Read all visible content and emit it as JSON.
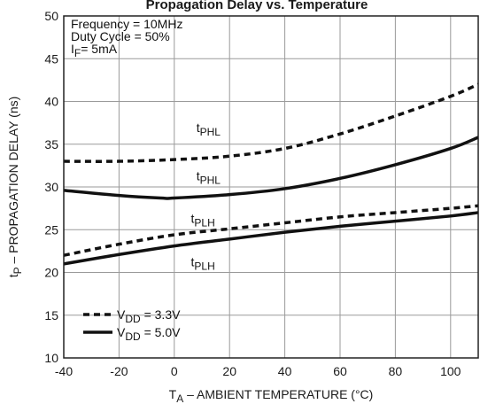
{
  "chart_data": {
    "type": "line",
    "title": "Propagation Delay vs. Temperature",
    "xlabel": {
      "pre": "T",
      "sub": "A",
      "post": " – AMBIENT TEMPERATURE (°C)"
    },
    "ylabel": {
      "pre": "t",
      "sub": "P",
      "post": " – PROPAGATION DELAY (ns)"
    },
    "xlim": [
      -40,
      110
    ],
    "ylim": [
      10,
      50
    ],
    "x_ticks": [
      -40,
      -20,
      0,
      20,
      40,
      60,
      80,
      100
    ],
    "y_ticks": [
      10,
      15,
      20,
      25,
      30,
      35,
      40,
      45,
      50
    ],
    "grid": true,
    "conditions": [
      {
        "text": "Frequency = 10MHz"
      },
      {
        "text": "Duty Cycle = 50%"
      },
      {
        "pre": "I",
        "sub": "F",
        "post": "= 5mA"
      }
    ],
    "legend": {
      "placement": "bottom-left",
      "entries": [
        {
          "style": "dashed",
          "pre": "V",
          "sub": "DD",
          "post": " = 3.3V"
        },
        {
          "style": "solid",
          "pre": "V",
          "sub": "DD",
          "post": " = 5.0V"
        }
      ]
    },
    "series": [
      {
        "curve": "tPHL",
        "vdd": "3.3V",
        "style": "dashed",
        "x": [
          -40,
          -20,
          0,
          20,
          40,
          60,
          80,
          100,
          110
        ],
        "y": [
          33.0,
          33.0,
          33.2,
          33.6,
          34.5,
          36.2,
          38.3,
          40.6,
          42.0
        ]
      },
      {
        "curve": "tPHL",
        "vdd": "5.0V",
        "style": "solid",
        "x": [
          -40,
          -20,
          -5,
          0,
          20,
          40,
          60,
          80,
          100,
          110
        ],
        "y": [
          29.6,
          29.0,
          28.7,
          28.7,
          29.1,
          29.8,
          31.0,
          32.6,
          34.5,
          35.8
        ]
      },
      {
        "curve": "tPLH",
        "vdd": "3.3V",
        "style": "dashed",
        "x": [
          -40,
          -20,
          0,
          20,
          40,
          60,
          80,
          100,
          110
        ],
        "y": [
          22.0,
          23.3,
          24.4,
          25.1,
          25.8,
          26.5,
          27.0,
          27.5,
          27.8
        ]
      },
      {
        "curve": "tPLH",
        "vdd": "5.0V",
        "style": "solid",
        "x": [
          -40,
          -20,
          0,
          20,
          40,
          60,
          80,
          100,
          110
        ],
        "y": [
          21.0,
          22.1,
          23.1,
          23.9,
          24.7,
          25.4,
          26.0,
          26.6,
          27.0
        ]
      }
    ],
    "curve_labels": [
      {
        "pre": "t",
        "sub": "PHL",
        "at": [
          8,
          36.4
        ]
      },
      {
        "pre": "t",
        "sub": "PHL",
        "at": [
          8,
          30.8
        ]
      },
      {
        "pre": "t",
        "sub": "PLH",
        "at": [
          6,
          25.8
        ]
      },
      {
        "pre": "t",
        "sub": "PLH",
        "at": [
          6,
          20.7
        ]
      }
    ]
  }
}
